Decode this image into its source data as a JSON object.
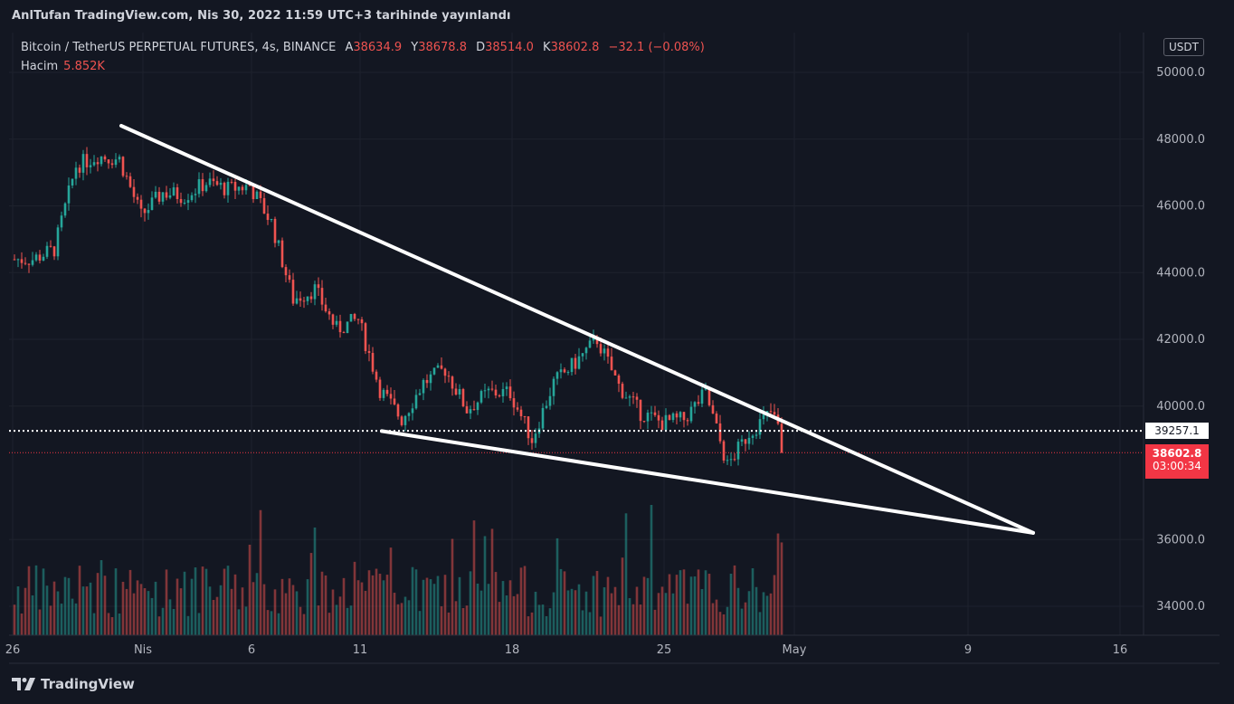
{
  "header": {
    "publish_text": "AnlTufan TradingView.com, Nis 30, 2022 11:59 UTC+3 tarihinde yayınlandı"
  },
  "legend": {
    "symbol": "Bitcoin / TetherUS PERPETUAL FUTURES, 4s, BINANCE",
    "open_label": "A",
    "open": "38634.9",
    "high_label": "Y",
    "high": "38678.8",
    "low_label": "D",
    "low": "38514.0",
    "close_label": "K",
    "close": "38602.8",
    "change": "−32.1 (−0.08%)",
    "volume_label": "Hacim",
    "volume": "5.852K"
  },
  "currency": "USDT",
  "price_tags": {
    "dotted_level": "39257.1",
    "last_price": "38602.8",
    "countdown": "03:00:34"
  },
  "brand": "TradingView",
  "colors": {
    "up": "#26a69a",
    "down": "#ef5350",
    "background": "#131722",
    "grid": "#1f2330",
    "trendline": "#ffffff"
  },
  "chart_data": {
    "type": "candlestick",
    "title": "",
    "symbol": "BTCUSDT Perpetual",
    "interval": "4h",
    "ylim": [
      33000,
      51000
    ],
    "y_ticks": [
      "50000.0",
      "48000.0",
      "46000.0",
      "44000.0",
      "42000.0",
      "40000.0",
      "36000.0",
      "34000.0"
    ],
    "y_tick_values": [
      50000,
      48000,
      46000,
      44000,
      42000,
      40000,
      36000,
      34000
    ],
    "x_ticks": [
      "26",
      "Nis",
      "6",
      "11",
      "18",
      "25",
      "May",
      "9",
      "16"
    ],
    "x_tick_dates": [
      "2022-03-26",
      "2022-04-01",
      "2022-04-06",
      "2022-04-11",
      "2022-04-18",
      "2022-04-25",
      "2022-05-01",
      "2022-05-09",
      "2022-05-16"
    ],
    "daily_closes": [
      {
        "date": "2022-03-26",
        "close": 44400
      },
      {
        "date": "2022-03-27",
        "close": 44700
      },
      {
        "date": "2022-03-28",
        "close": 47200
      },
      {
        "date": "2022-03-29",
        "close": 47500
      },
      {
        "date": "2022-03-30",
        "close": 47400
      },
      {
        "date": "2022-03-31",
        "close": 45700
      },
      {
        "date": "2022-04-01",
        "close": 46400
      },
      {
        "date": "2022-04-02",
        "close": 46300
      },
      {
        "date": "2022-04-03",
        "close": 46700
      },
      {
        "date": "2022-04-04",
        "close": 46500
      },
      {
        "date": "2022-04-05",
        "close": 46600
      },
      {
        "date": "2022-04-06",
        "close": 45500
      },
      {
        "date": "2022-04-07",
        "close": 43200
      },
      {
        "date": "2022-04-08",
        "close": 43500
      },
      {
        "date": "2022-04-09",
        "close": 42300
      },
      {
        "date": "2022-04-10",
        "close": 42600
      },
      {
        "date": "2022-04-11",
        "close": 40500
      },
      {
        "date": "2022-04-12",
        "close": 39600
      },
      {
        "date": "2022-04-13",
        "close": 40700
      },
      {
        "date": "2022-04-14",
        "close": 41100
      },
      {
        "date": "2022-04-15",
        "close": 39900
      },
      {
        "date": "2022-04-16",
        "close": 40400
      },
      {
        "date": "2022-04-17",
        "close": 40400
      },
      {
        "date": "2022-04-18",
        "close": 39000
      },
      {
        "date": "2022-04-19",
        "close": 40700
      },
      {
        "date": "2022-04-20",
        "close": 41300
      },
      {
        "date": "2022-04-21",
        "close": 42000
      },
      {
        "date": "2022-04-22",
        "close": 40600
      },
      {
        "date": "2022-04-23",
        "close": 39800
      },
      {
        "date": "2022-04-24",
        "close": 39500
      },
      {
        "date": "2022-04-25",
        "close": 39600
      },
      {
        "date": "2022-04-26",
        "close": 40400
      },
      {
        "date": "2022-04-27",
        "close": 38200
      },
      {
        "date": "2022-04-28",
        "close": 39200
      },
      {
        "date": "2022-04-29",
        "close": 39800
      },
      {
        "date": "2022-04-30",
        "close": 38602.8
      }
    ],
    "horizontal_levels": [
      {
        "value": 39257.1,
        "style": "dotted"
      },
      {
        "value": 38602.8,
        "style": "dotted",
        "label": "last"
      }
    ],
    "trendlines": [
      {
        "from": {
          "date": "2022-03-31",
          "price": 48400
        },
        "to": {
          "date": "2022-05-12",
          "price": 36200
        }
      },
      {
        "from": {
          "date": "2022-04-12",
          "price": 39250
        },
        "to": {
          "date": "2022-05-12",
          "price": 36200
        }
      }
    ],
    "volume_series": "Hacim",
    "grid": true
  }
}
